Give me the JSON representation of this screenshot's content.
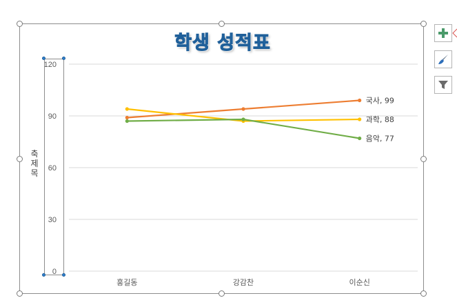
{
  "chart_title": "학생 성적표",
  "y_axis_title": "축 제목",
  "toolbar": {
    "add_element": "chart-elements-plus-icon",
    "style": "chart-styles-brush-icon",
    "filter": "chart-filters-funnel-icon"
  },
  "chart_data": {
    "type": "line",
    "title": "학생 성적표",
    "xlabel": "",
    "ylabel": "축 제목",
    "categories": [
      "홍길동",
      "강감찬",
      "이순신"
    ],
    "ylim": [
      0,
      120
    ],
    "yticks": [
      0,
      30,
      60,
      90,
      120
    ],
    "grid": true,
    "series": [
      {
        "name": "국사",
        "values": [
          89,
          94,
          99
        ],
        "color": "#ed7d31",
        "end_label": "국사, 99"
      },
      {
        "name": "과학",
        "values": [
          94,
          87,
          88
        ],
        "color": "#ffc000",
        "end_label": "과학, 88"
      },
      {
        "name": "음악",
        "values": [
          87,
          88,
          77
        ],
        "color": "#70ad47",
        "end_label": "음악, 77"
      }
    ]
  }
}
